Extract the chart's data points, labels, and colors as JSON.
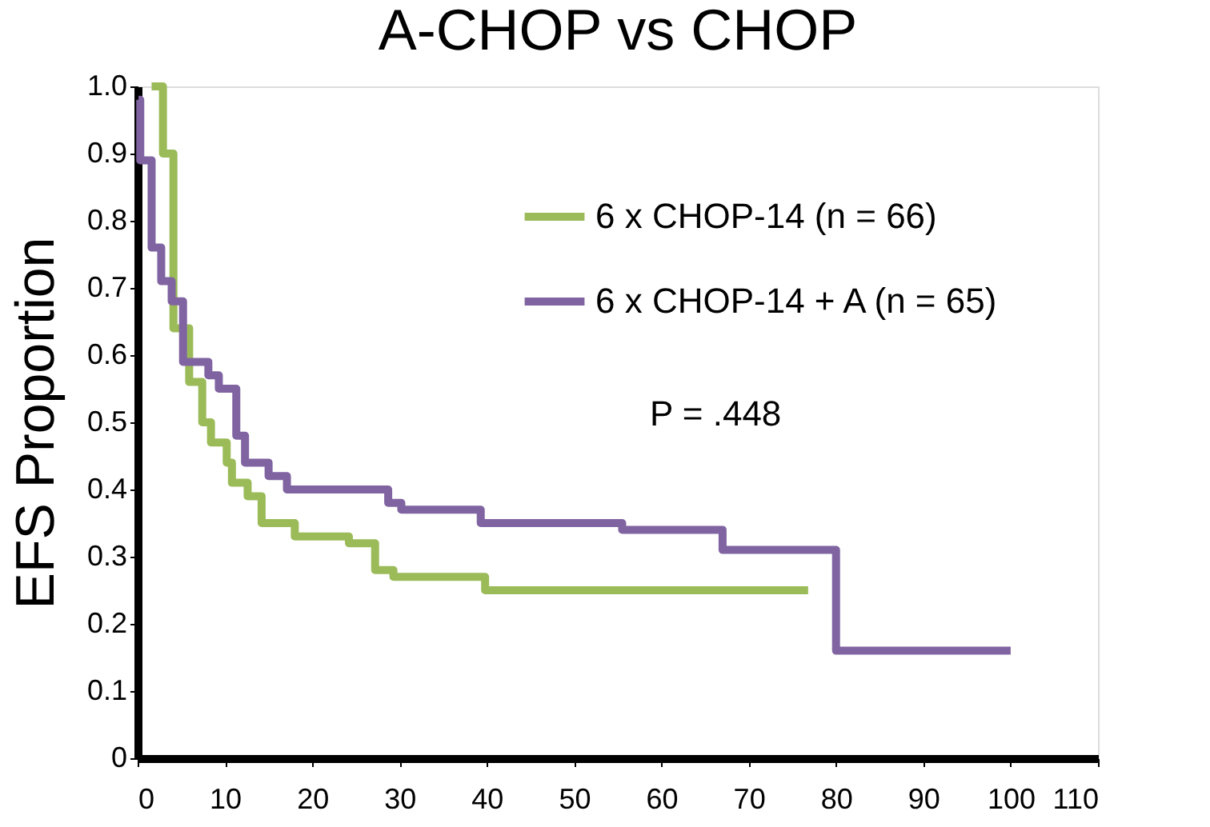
{
  "chart_data": {
    "type": "step",
    "title": "A-CHOP vs CHOP",
    "ylabel": "EFS Proportion",
    "xlim": [
      0,
      110
    ],
    "ylim": [
      0,
      1.0
    ],
    "xticks": [
      0,
      10,
      20,
      30,
      40,
      50,
      60,
      70,
      80,
      90,
      100,
      110
    ],
    "yticks": [
      0,
      0.1,
      0.2,
      0.3,
      0.4,
      0.5,
      0.6,
      0.7,
      0.8,
      0.9,
      {
        "value": 1,
        "label": "1.0"
      }
    ],
    "grid": false,
    "legend": "top right",
    "line_style": "solid",
    "marker": "none",
    "annotations": [
      "P = .448"
    ],
    "series": [
      {
        "name": "6 x CHOP-14 (n = 66)",
        "color": "#9bbb59",
        "x": [
          1.6,
          2.9,
          4.1,
          5.9,
          7.4,
          8.4,
          10.2,
          10.8,
          12.6,
          14.2,
          18,
          24.2,
          27.2,
          29.3,
          39.8,
          76.8
        ],
        "values": [
          1.0,
          0.9,
          0.64,
          0.56,
          0.5,
          0.47,
          0.44,
          0.41,
          0.39,
          0.35,
          0.33,
          0.32,
          0.28,
          0.27,
          0.25,
          0.25
        ]
      },
      {
        "name": "6 x CHOP-14 + A (n = 65)",
        "color": "#8064a2",
        "x": [
          0.1,
          0.3,
          1.6,
          2.7,
          3.9,
          5.2,
          8.1,
          9.3,
          11.3,
          12.3,
          15,
          17.1,
          28.7,
          30.2,
          39.3,
          55.5,
          67,
          80,
          100
        ],
        "values": [
          0.98,
          0.89,
          0.76,
          0.71,
          0.68,
          0.59,
          0.57,
          0.55,
          0.48,
          0.44,
          0.42,
          0.4,
          0.38,
          0.37,
          0.35,
          0.34,
          0.31,
          0.16,
          0.16
        ]
      }
    ]
  }
}
